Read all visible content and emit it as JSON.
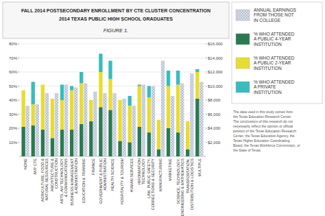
{
  "chart_data": {
    "type": "bar",
    "title": "FALL 2014 POSTSECONDARY ENROLLMENT BY CTE CLUSTER CONCENTRATION",
    "subtitle": "2014 TEXAS PUBLIC HIGH SCHOOL GRADUATES",
    "annotations": [
      "FIGURE 1.",
      "The data used in this study comes from\nthe Texas Education Research Center.\nThe conclusions of this research do not\nnecessarily reflect the opinion or official\nposition of the Texas Education Research\nCenter, the Texas Education Agency, the\nTexas Higher Education Coordinating\nBoard, the Texas Workforce Commission, or\nthe State of Texas."
    ],
    "categories": [
      "NONE",
      "ANY CTE",
      "AGRICULTURE, FOOD &\nNATURAL RESOURCES",
      "ARCHITECTURE &\nCONSTRUCTION",
      "ARTS, A/V TECHNOLOGY\n& COMMUNICATIONS",
      "BUSINESS MANAGEMENT\n& ADMINISTRATION",
      "EDUCATION & TRAINING",
      "FINANCE",
      "GOVERNMENT & PUBLIC\nADMINISTRATION",
      "HEALTH SCIENCE",
      "HOSPITALITY & TOURISM",
      "HUMAN SERVICES",
      "INFORMATION\nTECHNOLOGY",
      "LAW, PUBLIC SAFETY,\nCORRECTIONS & SECURITY",
      "MANUFACTURING",
      "MARKETING",
      "SCIENCE, TECHNOLOGY,\nENGINEERING & MATHEMATICS",
      "TRANSPORTATION,\nDISTRIBUTION & LOGISTICS",
      "MULTIPLE"
    ],
    "series": [
      {
        "name": "ANNUAL EARNINGS\nFROM THOSE NOT\nIN COLLEGE",
        "color": "#b8c0d4",
        "axis": "y2",
        "type": "bar",
        "values": [
          7200,
          7400,
          9000,
          9000,
          10200,
          9800,
          10400,
          9200,
          9000,
          9000,
          8200,
          7200,
          10200,
          10000,
          13600,
          8600,
          10400,
          11800,
          10600
        ]
      },
      {
        "name": "% WHO ATTENDED\nA PUBLIC 4-YEAR\nINSTITUTION",
        "color": "#2a7a50",
        "type": "bar",
        "values": [
          21,
          22,
          19,
          13,
          19,
          19,
          23,
          25,
          35,
          33,
          11,
          10,
          21,
          17,
          5,
          20,
          17,
          5,
          41
        ]
      },
      {
        "name": "% WHO ATTENDED\nA PUBLIC 2-YEAR\nINSTITUTION",
        "color": "#e8dc30",
        "type": "bar",
        "values": [
          26,
          15,
          32,
          28,
          21,
          28,
          29,
          15,
          25,
          22,
          29,
          26,
          29,
          25,
          21,
          30,
          34,
          20,
          19
        ]
      },
      {
        "name": "% WHO ATTENDED\nA PRIVATE\nINSTITUTION",
        "color": "#38bcc0",
        "type": "bar",
        "values": [
          0,
          16,
          0,
          0,
          11,
          3,
          8,
          0,
          13,
          13,
          0,
          7,
          1,
          8,
          0,
          11,
          10,
          0,
          2
        ]
      }
    ],
    "stacked": true,
    "ylim": [
      0,
      80
    ],
    "yticks": [
      {
        "value": 10,
        "label": "10%"
      },
      {
        "value": 20,
        "label": "20%"
      },
      {
        "value": 30,
        "label": "30%"
      },
      {
        "value": 40,
        "label": "40%"
      },
      {
        "value": 50,
        "label": "50%"
      },
      {
        "value": 60,
        "label": "60%"
      },
      {
        "value": 70,
        "label": "70%"
      },
      {
        "value": 80,
        "label": "80%"
      }
    ],
    "y2lim": [
      0,
      16000
    ],
    "y2ticks": [
      {
        "value": 2000,
        "label": "$2,000"
      },
      {
        "value": 4000,
        "label": "$4,000"
      },
      {
        "value": 6000,
        "label": "$6,000"
      },
      {
        "value": 8000,
        "label": "$8,000"
      },
      {
        "value": 10000,
        "label": "$10,000"
      },
      {
        "value": 12000,
        "label": "$12,000"
      },
      {
        "value": 14000,
        "label": "$14,000"
      },
      {
        "value": 16000,
        "label": "$16,000"
      }
    ],
    "grid": true,
    "legend": "upper right"
  }
}
